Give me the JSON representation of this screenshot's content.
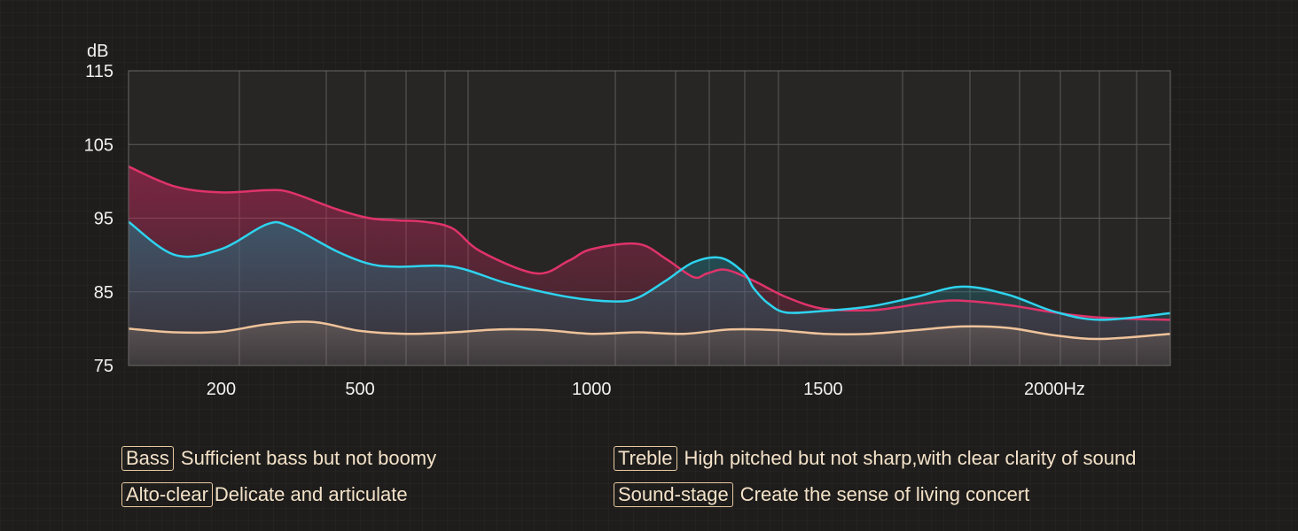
{
  "chart_data": {
    "type": "line",
    "ylabel": "dB",
    "xlabel": "",
    "ylim": [
      75,
      115
    ],
    "y_ticks": [
      "115",
      "105",
      "95",
      "85",
      "75"
    ],
    "x_tick_labels": [
      "200",
      "500",
      "1000",
      "1500",
      "2000Hz"
    ],
    "x_tick_values": [
      200,
      500,
      1000,
      1500,
      2000
    ],
    "x_range": [
      0,
      2250
    ],
    "grid": true,
    "colors": {
      "pink": "#e0336a",
      "cyan": "#2ed3ee",
      "beige": "#efc39a"
    },
    "series": [
      {
        "color": "pink",
        "x": [
          0,
          100,
          200,
          300,
          350,
          450,
          520,
          580,
          640,
          700,
          760,
          880,
          950,
          1000,
          1100,
          1160,
          1220,
          1250,
          1290,
          1350,
          1420,
          1500,
          1600,
          1660,
          1700,
          1750,
          1800,
          1900,
          2000,
          2100,
          2250
        ],
        "y": [
          102,
          99.3,
          98.5,
          98.8,
          98.5,
          96.2,
          95,
          94.7,
          94.5,
          93.6,
          90.5,
          87.5,
          89.2,
          90.8,
          91.5,
          89.5,
          87,
          87.5,
          88,
          86.5,
          84.3,
          82.7,
          82.5,
          82.9,
          83.3,
          83.7,
          83.8,
          83.2,
          82.2,
          81.5,
          81.2
        ]
      },
      {
        "color": "cyan",
        "x": [
          0,
          100,
          200,
          300,
          350,
          450,
          520,
          580,
          700,
          820,
          950,
          1050,
          1100,
          1160,
          1220,
          1280,
          1330,
          1350,
          1380,
          1420,
          1500,
          1600,
          1700,
          1800,
          1900,
          2000,
          2100,
          2250
        ],
        "y": [
          94.5,
          90,
          90.8,
          94.2,
          93.8,
          90.5,
          88.8,
          88.4,
          88.4,
          86.1,
          84.3,
          83.7,
          84.2,
          86.5,
          89,
          89.6,
          87.5,
          85.5,
          83.5,
          82.2,
          82.4,
          83,
          84.3,
          85.7,
          84.6,
          82.3,
          81.2,
          82.1
        ]
      },
      {
        "color": "beige",
        "x": [
          0,
          100,
          200,
          300,
          400,
          500,
          600,
          700,
          800,
          900,
          1000,
          1100,
          1200,
          1300,
          1400,
          1500,
          1600,
          1700,
          1800,
          1900,
          2000,
          2100,
          2250
        ],
        "y": [
          80,
          79.5,
          79.6,
          80.6,
          80.9,
          79.7,
          79.3,
          79.5,
          79.9,
          79.8,
          79.3,
          79.5,
          79.3,
          79.9,
          79.8,
          79.3,
          79.3,
          79.8,
          80.3,
          80.1,
          79.1,
          78.6,
          79.3
        ]
      }
    ]
  },
  "legend": [
    {
      "tag": "Bass",
      "text": "Sufficient bass but not boomy"
    },
    {
      "tag": "Treble",
      "text": "High pitched but not sharp,with clear clarity of sound"
    },
    {
      "tag": "Alto-clear",
      "text": "Delicate and articulate"
    },
    {
      "tag": "Sound-stage",
      "text": "Create the sense of living concert"
    }
  ]
}
